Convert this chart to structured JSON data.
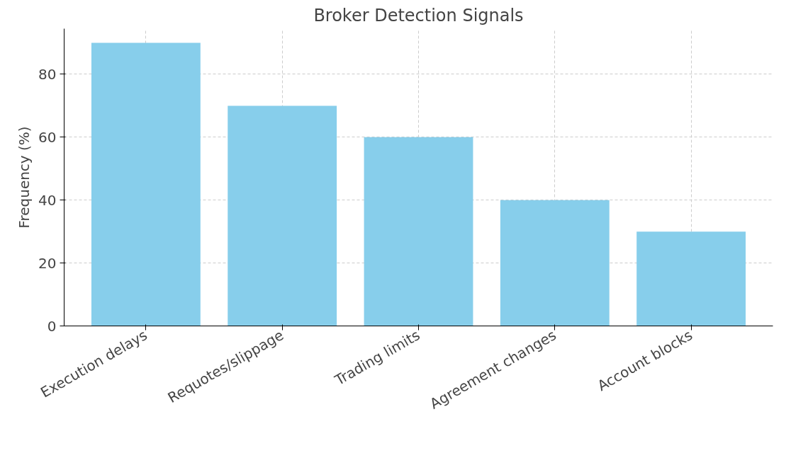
{
  "chart_data": {
    "type": "bar",
    "title": "Broker Detection Signals",
    "ylabel": "Frequency (%)",
    "categories": [
      "Execution delays",
      "Requotes/slippage",
      "Trading limits",
      "Agreement changes",
      "Account blocks"
    ],
    "values": [
      90,
      70,
      60,
      40,
      30
    ],
    "color": "#87ceeb",
    "ylim": [
      0,
      94.5
    ],
    "yticks": [
      0,
      20,
      40,
      60,
      80
    ],
    "grid": true
  }
}
